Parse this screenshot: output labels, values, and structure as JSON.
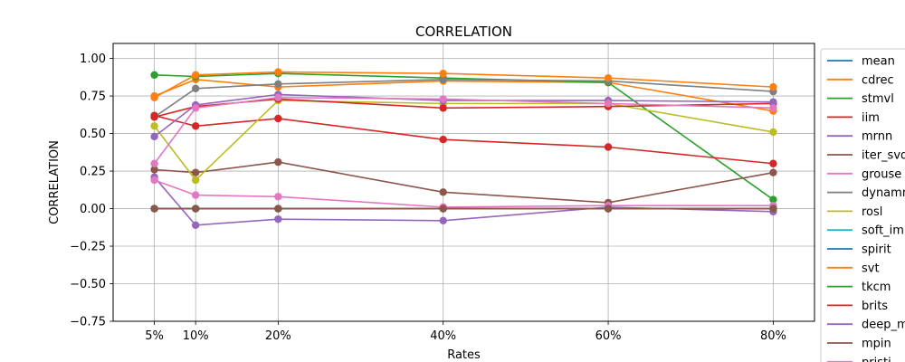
{
  "chart_data": {
    "type": "line",
    "title": "CORRELATION",
    "xlabel": "Rates",
    "ylabel": "CORRELATION",
    "x": [
      5,
      10,
      20,
      40,
      60,
      80
    ],
    "x_tick_labels": [
      "5%",
      "10%",
      "20%",
      "40%",
      "60%",
      "80%"
    ],
    "ylim": [
      -0.75,
      1.1
    ],
    "y_ticks": [
      -0.75,
      -0.5,
      -0.25,
      0.0,
      0.25,
      0.5,
      0.75,
      1.0
    ],
    "y_tick_labels": [
      "−0.75",
      "−0.50",
      "−0.25",
      "0.00",
      "0.25",
      "0.50",
      "0.75",
      "1.00"
    ],
    "grid": true,
    "legend_position": "right, outside",
    "legend": [
      {
        "name": "mean",
        "color": "#1f77b4"
      },
      {
        "name": "cdrec",
        "color": "#ff7f0e"
      },
      {
        "name": "stmvl",
        "color": "#2ca02c"
      },
      {
        "name": "iim",
        "color": "#d62728"
      },
      {
        "name": "mrnn",
        "color": "#9467bd"
      },
      {
        "name": "iter_svd",
        "color": "#8c564b"
      },
      {
        "name": "grouse",
        "color": "#e377c2"
      },
      {
        "name": "dynammo",
        "color": "#7f7f7f"
      },
      {
        "name": "rosl",
        "color": "#bcbd22"
      },
      {
        "name": "soft_impute",
        "color": "#17becf"
      },
      {
        "name": "spirit",
        "color": "#1f77b4"
      },
      {
        "name": "svt",
        "color": "#ff7f0e"
      },
      {
        "name": "tkcm",
        "color": "#2ca02c"
      },
      {
        "name": "brits",
        "color": "#d62728"
      },
      {
        "name": "deep_mvi",
        "color": "#9467bd"
      },
      {
        "name": "mpin",
        "color": "#8c564b"
      },
      {
        "name": "pristi",
        "color": "#e377c2"
      }
    ],
    "series": [
      {
        "name": "mean",
        "color": "#1f77b4",
        "values": [
          0.0,
          0.0,
          0.0,
          0.0,
          0.0,
          0.0
        ]
      },
      {
        "name": "cdrec",
        "color": "#ff7f0e",
        "values": [
          0.75,
          0.86,
          0.81,
          0.85,
          0.84,
          0.65
        ]
      },
      {
        "name": "stmvl",
        "color": "#2ca02c",
        "values": [
          0.89,
          0.88,
          0.9,
          0.87,
          0.84,
          0.06
        ]
      },
      {
        "name": "iim",
        "color": "#d62728",
        "values": [
          0.62,
          0.55,
          0.6,
          0.46,
          0.41,
          0.3
        ]
      },
      {
        "name": "mrnn",
        "color": "#9467bd",
        "values": [
          0.21,
          -0.11,
          -0.07,
          -0.08,
          0.01,
          -0.02
        ]
      },
      {
        "name": "iter_svd",
        "color": "#8c564b",
        "values": [
          0.26,
          0.24,
          0.31,
          0.11,
          0.04,
          0.24
        ]
      },
      {
        "name": "grouse",
        "color": "#e377c2",
        "values": [
          0.19,
          0.09,
          0.08,
          0.01,
          0.02,
          0.02
        ]
      },
      {
        "name": "dynammo",
        "color": "#7f7f7f",
        "values": [
          0.61,
          0.8,
          0.83,
          0.86,
          0.85,
          0.78
        ]
      },
      {
        "name": "rosl",
        "color": "#bcbd22",
        "values": [
          0.55,
          0.19,
          0.72,
          0.7,
          0.7,
          0.51
        ]
      },
      {
        "name": "soft_impute",
        "color": "#17becf",
        "values": [
          0.0,
          0.0,
          0.0,
          0.0,
          0.0,
          0.0
        ]
      },
      {
        "name": "spirit",
        "color": "#1f77b4",
        "values": [
          0.0,
          0.0,
          0.0,
          0.0,
          0.0,
          0.0
        ]
      },
      {
        "name": "svt",
        "color": "#ff7f0e",
        "values": [
          0.74,
          0.89,
          0.91,
          0.9,
          0.87,
          0.81
        ]
      },
      {
        "name": "tkcm",
        "color": "#2ca02c",
        "values": [
          0.0,
          0.0,
          0.0,
          0.0,
          0.0,
          0.0
        ]
      },
      {
        "name": "brits",
        "color": "#d62728",
        "values": [
          0.61,
          0.68,
          0.73,
          0.67,
          0.68,
          0.7
        ]
      },
      {
        "name": "deep_mvi",
        "color": "#9467bd",
        "values": [
          0.48,
          0.69,
          0.76,
          0.72,
          0.72,
          0.71
        ]
      },
      {
        "name": "mpin",
        "color": "#8c564b",
        "values": [
          0.0,
          0.0,
          0.0,
          0.0,
          0.0,
          0.0
        ]
      },
      {
        "name": "pristi",
        "color": "#e377c2",
        "values": [
          0.3,
          0.67,
          0.74,
          0.73,
          0.7,
          0.67
        ]
      }
    ]
  }
}
